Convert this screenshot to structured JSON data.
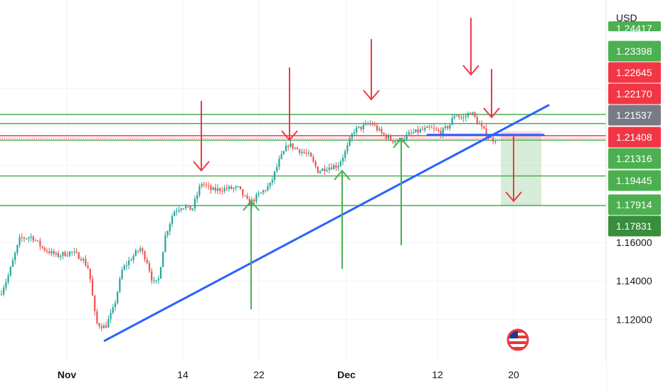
{
  "chart_data": {
    "type": "candlestick",
    "currency": "USD",
    "x_ticks": [
      "Nov",
      "14",
      "22",
      "Dec",
      "12",
      "20"
    ],
    "y_ticks": [
      "1.16000",
      "1.14000",
      "1.12000"
    ],
    "price_tags": [
      {
        "label": "1.24417",
        "color": "#4caf50"
      },
      {
        "label": "1.23398",
        "color": "#4caf50"
      },
      {
        "label": "1.22645",
        "color": "#f23645"
      },
      {
        "label": "1.22170",
        "color": "#f23645"
      },
      {
        "label": "1.21537",
        "color": "#787b86"
      },
      {
        "label": "1.21408",
        "color": "#f23645"
      },
      {
        "label": "1.21316",
        "color": "#4caf50"
      },
      {
        "label": "1.19445",
        "color": "#4caf50"
      },
      {
        "label": "1.17914",
        "color": "#4caf50"
      },
      {
        "label": "1.17831",
        "color": "#388e3c"
      }
    ],
    "horizontal_levels": [
      {
        "price": 1.2264,
        "color": "#4caf50"
      },
      {
        "price": 1.2217,
        "color": "#4caf50"
      },
      {
        "price": 1.2154,
        "color": "#f23645"
      },
      {
        "price": 1.2131,
        "color": "#4caf50"
      },
      {
        "price": 1.1945,
        "color": "#4caf50"
      },
      {
        "price": 1.1791,
        "color": "#4caf50"
      }
    ],
    "trendline": {
      "from": [
        "Nov 5",
        1.109
      ],
      "to": [
        "Dec 21",
        1.2312
      ],
      "color": "#2962ff"
    },
    "position": {
      "entry": 1.2142,
      "stop": 1.2176,
      "target": 1.1791
    },
    "colors": {
      "up": "#26a69a",
      "down": "#ef5350",
      "resistance_arrow": "#f23645",
      "support_arrow": "#4caf50"
    },
    "flag_icon": "us-flag-icon"
  }
}
